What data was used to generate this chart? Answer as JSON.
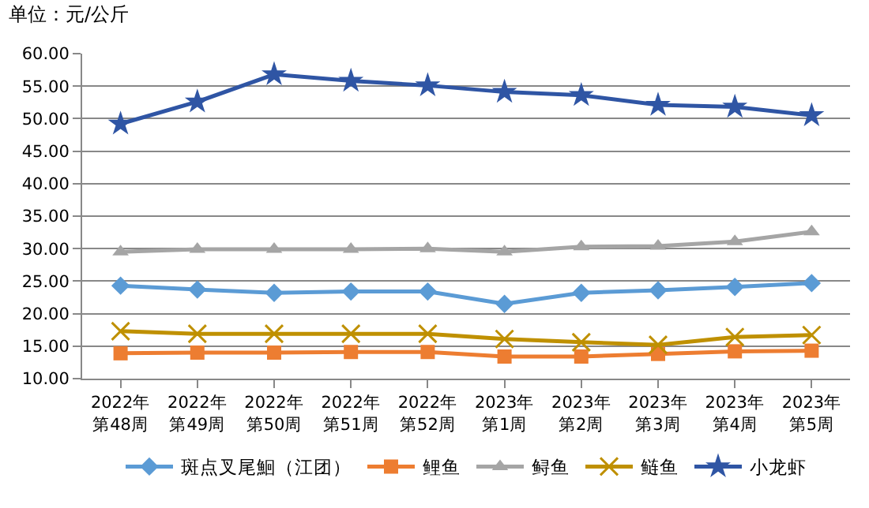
{
  "chart_data": {
    "type": "line",
    "title": "单位：元/公斤",
    "categories": [
      "2022年第48周",
      "2022年第49周",
      "2022年第50周",
      "2022年第51周",
      "2022年第52周",
      "2023年第1周",
      "2023年第2周",
      "2023年第3周",
      "2023年第4周",
      "2023年第5周"
    ],
    "series": [
      {
        "name": "斑点叉尾鮰（江团）",
        "color": "#5b9bd5",
        "marker": "diamond",
        "values": [
          24.3,
          23.7,
          23.2,
          23.4,
          23.4,
          21.5,
          23.2,
          23.6,
          24.1,
          24.7
        ]
      },
      {
        "name": "鲤鱼",
        "color": "#ed7d31",
        "marker": "square",
        "values": [
          13.9,
          14.0,
          14.0,
          14.1,
          14.1,
          13.4,
          13.4,
          13.8,
          14.2,
          14.3
        ]
      },
      {
        "name": "鲟鱼",
        "color": "#a5a5a5",
        "marker": "triangle",
        "values": [
          29.5,
          29.9,
          29.9,
          29.9,
          30.0,
          29.5,
          30.3,
          30.4,
          31.1,
          32.6
        ]
      },
      {
        "name": "鲢鱼",
        "color": "#bf9000",
        "marker": "cross",
        "values": [
          17.3,
          16.9,
          16.9,
          16.9,
          16.9,
          16.1,
          15.6,
          15.2,
          16.4,
          16.7
        ]
      },
      {
        "name": "小龙虾",
        "color": "#2f55a4",
        "marker": "star",
        "values": [
          49.2,
          52.6,
          56.8,
          55.8,
          55.1,
          54.1,
          53.6,
          52.1,
          51.8,
          50.5
        ]
      }
    ],
    "ylim": [
      10,
      60
    ],
    "yticks": [
      {
        "value": 10,
        "label": "10.00"
      },
      {
        "value": 15,
        "label": "15.00"
      },
      {
        "value": 20,
        "label": "20.00"
      },
      {
        "value": 25,
        "label": "25.00"
      },
      {
        "value": 30,
        "label": "30.00"
      },
      {
        "value": 35,
        "label": "35.00"
      },
      {
        "value": 40,
        "label": "40.00"
      },
      {
        "value": 45,
        "label": "45.00"
      },
      {
        "value": 50,
        "label": "50.00"
      },
      {
        "value": 55,
        "label": "55.00"
      },
      {
        "value": 60,
        "label": "60.00"
      }
    ],
    "grid": "y",
    "legend": "bottom",
    "line_style": "solid"
  }
}
